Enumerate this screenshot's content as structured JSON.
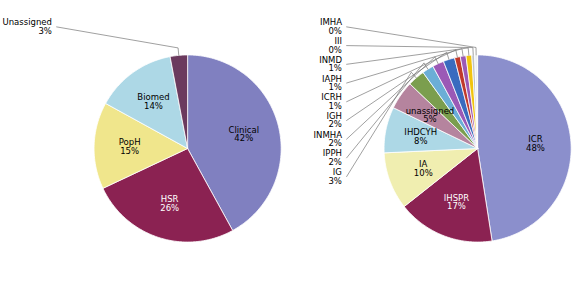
{
  "chart_data": [
    {
      "type": "pie",
      "categories": [
        "Clinical",
        "HSR",
        "PopH",
        "Biomed",
        "Unassigned"
      ],
      "values": [
        42,
        26,
        15,
        14,
        3
      ],
      "value_labels": [
        "42%",
        "26%",
        "15%",
        "14%",
        "3%"
      ],
      "colors": [
        "#8080c0",
        "#8B2252",
        "#F0E68C",
        "#ADD8E6",
        "#6B3A5E"
      ],
      "data_labels": true
    },
    {
      "type": "pie",
      "categories": [
        "ICR",
        "IHSPR",
        "IA",
        "IHDCYH",
        "unassigned",
        "IG",
        "IPPH",
        "INMHA",
        "IGH",
        "ICRH",
        "IAPH",
        "INMD",
        "III",
        "IMHA"
      ],
      "values": [
        48,
        17,
        10,
        8,
        5,
        3,
        2,
        2,
        2,
        1,
        1,
        1,
        0.5,
        0.5
      ],
      "value_labels": [
        "48%",
        "17%",
        "10%",
        "8%",
        "5%",
        "3%",
        "2%",
        "2%",
        "2%",
        "1%",
        "1%",
        "1%",
        "0%",
        "0%"
      ],
      "colors": [
        "#8B8FCC",
        "#8B2252",
        "#F0EEB0",
        "#ADD8E6",
        "#B5849E",
        "#7B9E4E",
        "#6BAED6",
        "#9B59B6",
        "#3A6BBF",
        "#C0392B",
        "#9B59B6",
        "#F1C40F",
        "#BDC3C7",
        "#ECF0F1"
      ],
      "data_labels": true
    }
  ]
}
